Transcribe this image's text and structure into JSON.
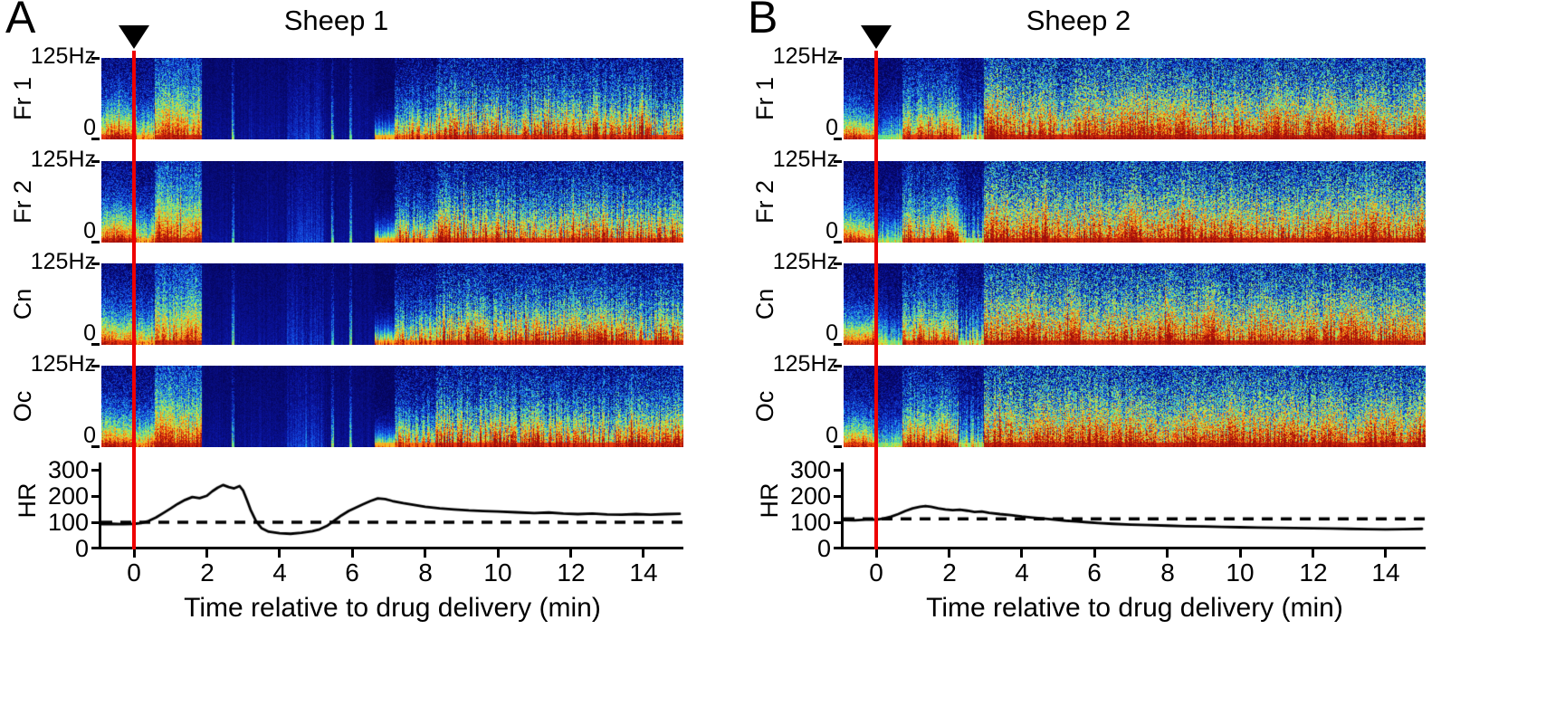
{
  "colors": {
    "event_line": "#ee0000",
    "marker": "#000000",
    "hr_trace": "#000000",
    "hr_baseline": "#000000",
    "background": "#ffffff"
  },
  "chart_data": [
    {
      "id": "sheep1-spectrograms",
      "type": "heatmap",
      "panel": "A",
      "title": "Sheep 1",
      "channels": [
        "Fr 1",
        "Fr 2",
        "Cn",
        "Oc"
      ],
      "freq_tick_labels": [
        "125Hz",
        "0"
      ],
      "freq_range_hz": [
        0,
        125
      ],
      "x_range_min": [
        -0.9,
        15.1
      ],
      "event_marker_time_min": 0,
      "colormap": "jet",
      "segments": [
        {
          "t0": -0.95,
          "t1": 0.05,
          "state": "baseline",
          "power": 0.95,
          "decay": 2.9,
          "noise": 0.16,
          "col_var": 0.16
        },
        {
          "t0": 0.05,
          "t1": 0.55,
          "state": "post-injection",
          "power": 0.75,
          "decay": 3.0,
          "noise": 0.15,
          "col_var": 0.25
        },
        {
          "t0": 0.55,
          "t1": 1.85,
          "state": "high-amplitude-burst",
          "power": 1.0,
          "decay": 1.7,
          "noise": 0.18,
          "col_var": 0.2
        },
        {
          "t0": 1.85,
          "t1": 4.2,
          "state": "suppression",
          "power": 0.1,
          "decay": 1.0,
          "noise": 0.04,
          "col_var": 0.3
        },
        {
          "t0": 4.2,
          "t1": 5.2,
          "state": "suppression-light",
          "power": 0.18,
          "decay": 1.2,
          "noise": 0.06,
          "col_var": 0.35
        },
        {
          "t0": 5.2,
          "t1": 6.6,
          "state": "suppression",
          "power": 0.1,
          "decay": 1.0,
          "noise": 0.04,
          "col_var": 0.3
        },
        {
          "t0": 6.6,
          "t1": 7.15,
          "state": "emergence",
          "power": 0.75,
          "decay": 6.0,
          "noise": 0.07,
          "col_var": 0.3
        },
        {
          "t0": 7.15,
          "t1": 8.3,
          "state": "recovery-early",
          "power": 0.85,
          "decay": 3.0,
          "noise": 0.18,
          "col_var": 0.4
        },
        {
          "t0": 8.3,
          "t1": 15.2,
          "state": "recovery",
          "power": 0.95,
          "decay": 2.35,
          "noise": 0.22,
          "col_var": 0.42
        }
      ],
      "bright_streaks_min": [
        2.7,
        5.45,
        5.95
      ]
    },
    {
      "id": "sheep1-heart-rate",
      "type": "line",
      "panel": "A",
      "ylabel": "HR",
      "y_tick_labels": [
        "300",
        "200",
        "100",
        "0"
      ],
      "y_range": [
        0,
        300
      ],
      "x_ticks": [
        0,
        2,
        4,
        6,
        8,
        10,
        12,
        14
      ],
      "xlabel": "Time relative to drug delivery (min)",
      "baseline_bpm": 100,
      "baseline_style": "dashed",
      "series_bpm": [
        [
          -0.9,
          93
        ],
        [
          -0.6,
          94
        ],
        [
          -0.3,
          93
        ],
        [
          0,
          94
        ],
        [
          0.2,
          97
        ],
        [
          0.4,
          105
        ],
        [
          0.6,
          118
        ],
        [
          0.8,
          135
        ],
        [
          1.0,
          152
        ],
        [
          1.2,
          170
        ],
        [
          1.4,
          185
        ],
        [
          1.6,
          196
        ],
        [
          1.8,
          192
        ],
        [
          2.0,
          201
        ],
        [
          2.15,
          218
        ],
        [
          2.3,
          232
        ],
        [
          2.45,
          242
        ],
        [
          2.6,
          234
        ],
        [
          2.75,
          229
        ],
        [
          2.9,
          238
        ],
        [
          3.0,
          220
        ],
        [
          3.1,
          185
        ],
        [
          3.2,
          148
        ],
        [
          3.35,
          105
        ],
        [
          3.5,
          78
        ],
        [
          3.7,
          64
        ],
        [
          4.0,
          58
        ],
        [
          4.3,
          56
        ],
        [
          4.6,
          60
        ],
        [
          4.9,
          66
        ],
        [
          5.1,
          73
        ],
        [
          5.3,
          86
        ],
        [
          5.5,
          106
        ],
        [
          5.7,
          126
        ],
        [
          5.9,
          143
        ],
        [
          6.1,
          156
        ],
        [
          6.3,
          169
        ],
        [
          6.5,
          181
        ],
        [
          6.7,
          191
        ],
        [
          6.9,
          188
        ],
        [
          7.1,
          181
        ],
        [
          7.4,
          173
        ],
        [
          7.7,
          166
        ],
        [
          8.0,
          159
        ],
        [
          8.4,
          153
        ],
        [
          8.8,
          149
        ],
        [
          9.2,
          145
        ],
        [
          9.6,
          143
        ],
        [
          10.0,
          141
        ],
        [
          10.5,
          138
        ],
        [
          11.0,
          135
        ],
        [
          11.4,
          137
        ],
        [
          11.8,
          133
        ],
        [
          12.2,
          131
        ],
        [
          12.6,
          133
        ],
        [
          13.0,
          130
        ],
        [
          13.4,
          129
        ],
        [
          13.8,
          131
        ],
        [
          14.2,
          129
        ],
        [
          14.6,
          131
        ],
        [
          15.0,
          132
        ]
      ]
    },
    {
      "id": "sheep2-spectrograms",
      "type": "heatmap",
      "panel": "B",
      "title": "Sheep 2",
      "channels": [
        "Fr 1",
        "Fr 2",
        "Cn",
        "Oc"
      ],
      "freq_tick_labels": [
        "125Hz",
        "0"
      ],
      "freq_range_hz": [
        0,
        125
      ],
      "x_range_min": [
        -0.9,
        15.1
      ],
      "event_marker_time_min": 0,
      "colormap": "jet",
      "segments": [
        {
          "t0": -0.95,
          "t1": 0.0,
          "state": "baseline",
          "power": 0.9,
          "decay": 3.3,
          "noise": 0.15,
          "col_var": 0.16
        },
        {
          "t0": 0.0,
          "t1": 0.7,
          "state": "post-injection",
          "power": 0.5,
          "decay": 3.2,
          "noise": 0.12,
          "col_var": 0.3
        },
        {
          "t0": 0.7,
          "t1": 2.25,
          "state": "activation",
          "power": 0.95,
          "decay": 2.3,
          "noise": 0.2,
          "col_var": 0.32
        },
        {
          "t0": 2.25,
          "t1": 2.95,
          "state": "transient-dip",
          "power": 0.55,
          "decay": 2.6,
          "noise": 0.16,
          "col_var": 0.55
        },
        {
          "t0": 2.95,
          "t1": 15.2,
          "state": "sustained-high",
          "power": 1.0,
          "decay": 1.75,
          "noise": 0.27,
          "col_var": 0.27
        }
      ],
      "bright_streaks_min": []
    },
    {
      "id": "sheep2-heart-rate",
      "type": "line",
      "panel": "B",
      "ylabel": "HR",
      "y_tick_labels": [
        "300",
        "200",
        "100",
        "0"
      ],
      "y_range": [
        0,
        300
      ],
      "x_ticks": [
        0,
        2,
        4,
        6,
        8,
        10,
        12,
        14
      ],
      "xlabel": "Time relative to drug delivery (min)",
      "baseline_bpm": 113,
      "baseline_style": "dashed",
      "series_bpm": [
        [
          -0.9,
          108
        ],
        [
          -0.6,
          107
        ],
        [
          -0.3,
          110
        ],
        [
          0,
          110
        ],
        [
          0.2,
          114
        ],
        [
          0.4,
          121
        ],
        [
          0.6,
          131
        ],
        [
          0.8,
          143
        ],
        [
          1.0,
          153
        ],
        [
          1.2,
          159
        ],
        [
          1.35,
          162
        ],
        [
          1.5,
          159
        ],
        [
          1.7,
          153
        ],
        [
          1.9,
          149
        ],
        [
          2.1,
          146
        ],
        [
          2.3,
          148
        ],
        [
          2.5,
          144
        ],
        [
          2.7,
          139
        ],
        [
          2.9,
          141
        ],
        [
          3.1,
          136
        ],
        [
          3.4,
          131
        ],
        [
          3.7,
          127
        ],
        [
          4.0,
          122
        ],
        [
          4.3,
          118
        ],
        [
          4.6,
          114
        ],
        [
          4.9,
          110
        ],
        [
          5.2,
          106
        ],
        [
          5.5,
          103
        ],
        [
          5.8,
          100
        ],
        [
          6.1,
          97
        ],
        [
          6.5,
          94
        ],
        [
          7.0,
          91
        ],
        [
          7.5,
          89
        ],
        [
          8.0,
          87
        ],
        [
          8.5,
          85
        ],
        [
          9.0,
          84
        ],
        [
          9.5,
          82
        ],
        [
          10.0,
          81
        ],
        [
          10.5,
          80
        ],
        [
          11.0,
          79
        ],
        [
          11.5,
          78
        ],
        [
          12.0,
          77
        ],
        [
          12.5,
          76
        ],
        [
          13.0,
          75
        ],
        [
          13.5,
          74
        ],
        [
          14.0,
          73
        ],
        [
          14.5,
          74
        ],
        [
          15.0,
          75
        ]
      ]
    }
  ]
}
